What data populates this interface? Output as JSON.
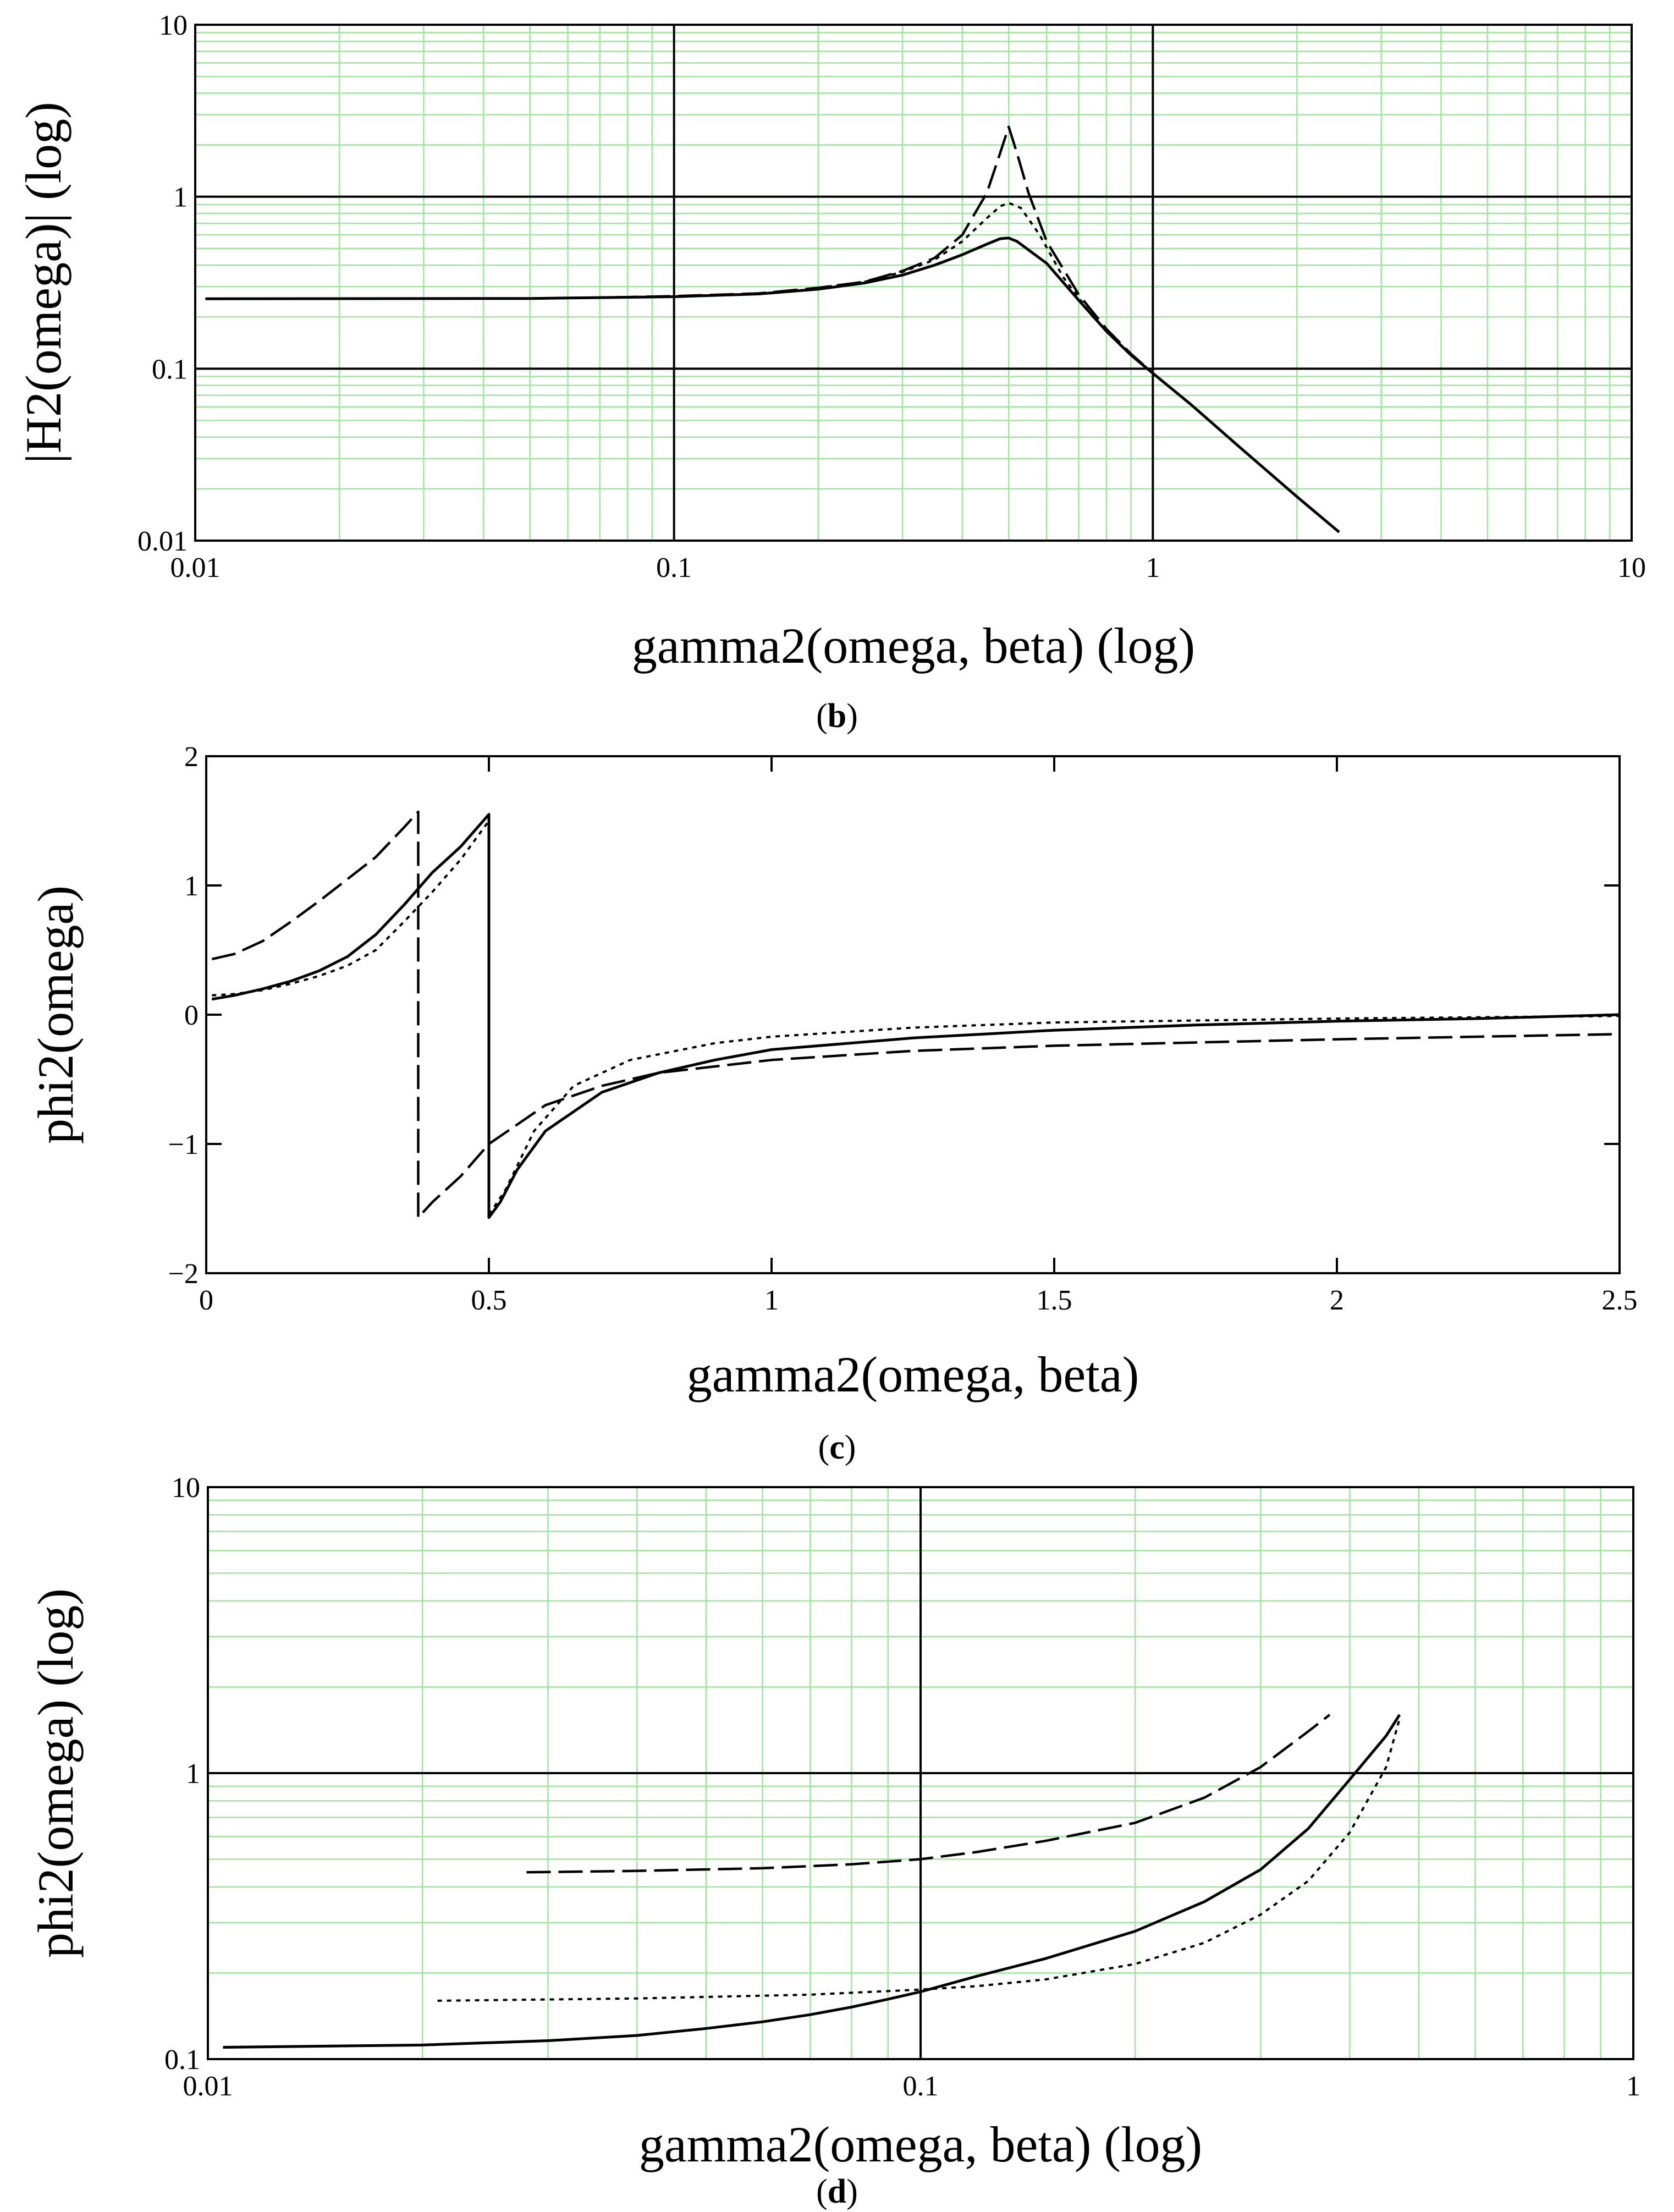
{
  "chart_data": [
    {
      "id": "b",
      "type": "line",
      "panel_label": "b",
      "xlabel": "gamma2(omega, beta) (log)",
      "ylabel": "|H2(omega)| (log)",
      "xscale": "log",
      "yscale": "log",
      "xlim": [
        0.01,
        10
      ],
      "ylim": [
        0.01,
        10
      ],
      "x_ticks": [
        0.01,
        0.1,
        1,
        10
      ],
      "x_tick_labels": [
        "0.01",
        "0.1",
        "1",
        "10"
      ],
      "y_ticks": [
        0.01,
        0.1,
        1,
        10
      ],
      "y_tick_labels": [
        "0.01",
        "0.1",
        "1",
        "10"
      ],
      "grid": true,
      "series": [
        {
          "name": "solid",
          "style": "solid",
          "points": [
            [
              0.0105,
              0.255
            ],
            [
              0.05,
              0.256
            ],
            [
              0.1,
              0.262
            ],
            [
              0.15,
              0.272
            ],
            [
              0.2,
              0.29
            ],
            [
              0.25,
              0.315
            ],
            [
              0.3,
              0.35
            ],
            [
              0.35,
              0.4
            ],
            [
              0.4,
              0.46
            ],
            [
              0.45,
              0.53
            ],
            [
              0.48,
              0.57
            ],
            [
              0.5,
              0.575
            ],
            [
              0.52,
              0.55
            ],
            [
              0.6,
              0.41
            ],
            [
              0.7,
              0.25
            ],
            [
              0.8,
              0.165
            ],
            [
              0.9,
              0.12
            ],
            [
              1.0,
              0.094
            ],
            [
              1.2,
              0.062
            ],
            [
              1.5,
              0.036
            ],
            [
              2.0,
              0.018
            ],
            [
              2.45,
              0.0112
            ]
          ]
        },
        {
          "name": "dashed",
          "style": "dashed",
          "points": [
            [
              0.075,
              0.26
            ],
            [
              0.1,
              0.264
            ],
            [
              0.15,
              0.274
            ],
            [
              0.2,
              0.295
            ],
            [
              0.25,
              0.32
            ],
            [
              0.3,
              0.37
            ],
            [
              0.35,
              0.44
            ],
            [
              0.4,
              0.6
            ],
            [
              0.45,
              1.05
            ],
            [
              0.48,
              1.8
            ],
            [
              0.5,
              2.55
            ],
            [
              0.52,
              1.8
            ],
            [
              0.55,
              1.05
            ],
            [
              0.6,
              0.55
            ],
            [
              0.7,
              0.27
            ],
            [
              0.8,
              0.17
            ],
            [
              0.9,
              0.122
            ],
            [
              1.0,
              0.094
            ]
          ]
        },
        {
          "name": "dotted",
          "style": "dotted",
          "points": [
            [
              0.2,
              0.295
            ],
            [
              0.25,
              0.32
            ],
            [
              0.3,
              0.365
            ],
            [
              0.35,
              0.43
            ],
            [
              0.4,
              0.55
            ],
            [
              0.45,
              0.75
            ],
            [
              0.48,
              0.88
            ],
            [
              0.5,
              0.92
            ],
            [
              0.53,
              0.86
            ],
            [
              0.58,
              0.6
            ],
            [
              0.65,
              0.34
            ],
            [
              0.75,
              0.2
            ],
            [
              0.85,
              0.14
            ],
            [
              1.0,
              0.094
            ]
          ]
        }
      ]
    },
    {
      "id": "c",
      "type": "line",
      "panel_label": "c",
      "xlabel": "gamma2(omega, beta)",
      "ylabel": "phi2(omega)",
      "xscale": "linear",
      "yscale": "linear",
      "xlim": [
        0,
        2.5
      ],
      "ylim": [
        -2,
        2
      ],
      "x_ticks": [
        0,
        0.5,
        1,
        1.5,
        2,
        2.5
      ],
      "x_tick_labels": [
        "0",
        "0.5",
        "1",
        "1.5",
        "2",
        "2.5"
      ],
      "y_ticks": [
        -2,
        -1,
        0,
        1,
        2
      ],
      "y_tick_labels": [
        "−2",
        "−1",
        "0",
        "1",
        "2"
      ],
      "grid": false,
      "series": [
        {
          "name": "solid",
          "style": "solid",
          "points": [
            [
              0.01,
              0.12
            ],
            [
              0.05,
              0.15
            ],
            [
              0.1,
              0.2
            ],
            [
              0.15,
              0.26
            ],
            [
              0.2,
              0.34
            ],
            [
              0.25,
              0.45
            ],
            [
              0.3,
              0.62
            ],
            [
              0.35,
              0.85
            ],
            [
              0.4,
              1.1
            ],
            [
              0.45,
              1.3
            ],
            [
              0.5,
              1.55
            ],
            [
              0.5,
              -1.57
            ],
            [
              0.52,
              -1.45
            ],
            [
              0.55,
              -1.2
            ],
            [
              0.6,
              -0.9
            ],
            [
              0.7,
              -0.6
            ],
            [
              0.8,
              -0.45
            ],
            [
              0.9,
              -0.35
            ],
            [
              1.0,
              -0.27
            ],
            [
              1.25,
              -0.18
            ],
            [
              1.5,
              -0.12
            ],
            [
              1.75,
              -0.08
            ],
            [
              2.0,
              -0.05
            ],
            [
              2.25,
              -0.03
            ],
            [
              2.5,
              0.0
            ]
          ]
        },
        {
          "name": "dashed",
          "style": "dashed",
          "points": [
            [
              0.01,
              0.43
            ],
            [
              0.05,
              0.47
            ],
            [
              0.1,
              0.57
            ],
            [
              0.15,
              0.72
            ],
            [
              0.2,
              0.88
            ],
            [
              0.25,
              1.05
            ],
            [
              0.3,
              1.22
            ],
            [
              0.35,
              1.45
            ],
            [
              0.375,
              1.57
            ],
            [
              0.375,
              -1.57
            ],
            [
              0.4,
              -1.45
            ],
            [
              0.45,
              -1.25
            ],
            [
              0.5,
              -1.0
            ],
            [
              0.55,
              -0.85
            ],
            [
              0.6,
              -0.7
            ],
            [
              0.7,
              -0.55
            ],
            [
              0.8,
              -0.45
            ],
            [
              1.0,
              -0.35
            ],
            [
              1.25,
              -0.28
            ],
            [
              1.5,
              -0.24
            ],
            [
              2.0,
              -0.19
            ],
            [
              2.5,
              -0.15
            ]
          ]
        },
        {
          "name": "dotted",
          "style": "dotted",
          "points": [
            [
              0.01,
              0.15
            ],
            [
              0.05,
              0.16
            ],
            [
              0.1,
              0.19
            ],
            [
              0.15,
              0.24
            ],
            [
              0.2,
              0.3
            ],
            [
              0.25,
              0.38
            ],
            [
              0.3,
              0.5
            ],
            [
              0.35,
              0.72
            ],
            [
              0.4,
              0.95
            ],
            [
              0.45,
              1.2
            ],
            [
              0.5,
              1.5
            ],
            [
              0.5,
              -1.55
            ],
            [
              0.53,
              -1.35
            ],
            [
              0.58,
              -0.9
            ],
            [
              0.65,
              -0.55
            ],
            [
              0.75,
              -0.35
            ],
            [
              0.9,
              -0.22
            ],
            [
              1.0,
              -0.17
            ],
            [
              1.25,
              -0.1
            ],
            [
              1.5,
              -0.06
            ],
            [
              2.0,
              -0.03
            ],
            [
              2.5,
              -0.01
            ]
          ]
        }
      ]
    },
    {
      "id": "d",
      "type": "line",
      "panel_label": "d",
      "xlabel": "gamma2(omega, beta) (log)",
      "ylabel": "phi2(omega) (log)",
      "xscale": "log",
      "yscale": "log",
      "xlim": [
        0.01,
        1
      ],
      "ylim": [
        0.1,
        10
      ],
      "x_ticks": [
        0.01,
        0.1,
        1
      ],
      "x_tick_labels": [
        "0.01",
        "0.1",
        "1"
      ],
      "y_ticks": [
        0.1,
        1,
        10
      ],
      "y_tick_labels": [
        "0.1",
        "1",
        "10"
      ],
      "grid": true,
      "series": [
        {
          "name": "solid",
          "style": "solid",
          "points": [
            [
              0.0105,
              0.11
            ],
            [
              0.02,
              0.112
            ],
            [
              0.03,
              0.116
            ],
            [
              0.04,
              0.121
            ],
            [
              0.05,
              0.128
            ],
            [
              0.06,
              0.135
            ],
            [
              0.07,
              0.143
            ],
            [
              0.08,
              0.152
            ],
            [
              0.09,
              0.162
            ],
            [
              0.1,
              0.172
            ],
            [
              0.12,
              0.195
            ],
            [
              0.15,
              0.225
            ],
            [
              0.2,
              0.28
            ],
            [
              0.25,
              0.355
            ],
            [
              0.3,
              0.46
            ],
            [
              0.35,
              0.64
            ],
            [
              0.4,
              0.95
            ],
            [
              0.45,
              1.35
            ],
            [
              0.47,
              1.6
            ]
          ]
        },
        {
          "name": "dashed",
          "style": "dashed",
          "points": [
            [
              0.028,
              0.45
            ],
            [
              0.04,
              0.455
            ],
            [
              0.06,
              0.465
            ],
            [
              0.08,
              0.48
            ],
            [
              0.1,
              0.5
            ],
            [
              0.12,
              0.53
            ],
            [
              0.15,
              0.58
            ],
            [
              0.2,
              0.67
            ],
            [
              0.25,
              0.82
            ],
            [
              0.3,
              1.05
            ],
            [
              0.35,
              1.4
            ],
            [
              0.375,
              1.6
            ]
          ]
        },
        {
          "name": "dotted",
          "style": "dotted",
          "points": [
            [
              0.021,
              0.16
            ],
            [
              0.04,
              0.163
            ],
            [
              0.07,
              0.168
            ],
            [
              0.1,
              0.175
            ],
            [
              0.12,
              0.18
            ],
            [
              0.15,
              0.19
            ],
            [
              0.2,
              0.215
            ],
            [
              0.25,
              0.255
            ],
            [
              0.3,
              0.32
            ],
            [
              0.35,
              0.42
            ],
            [
              0.4,
              0.62
            ],
            [
              0.45,
              1.05
            ],
            [
              0.47,
              1.55
            ]
          ]
        }
      ]
    }
  ]
}
